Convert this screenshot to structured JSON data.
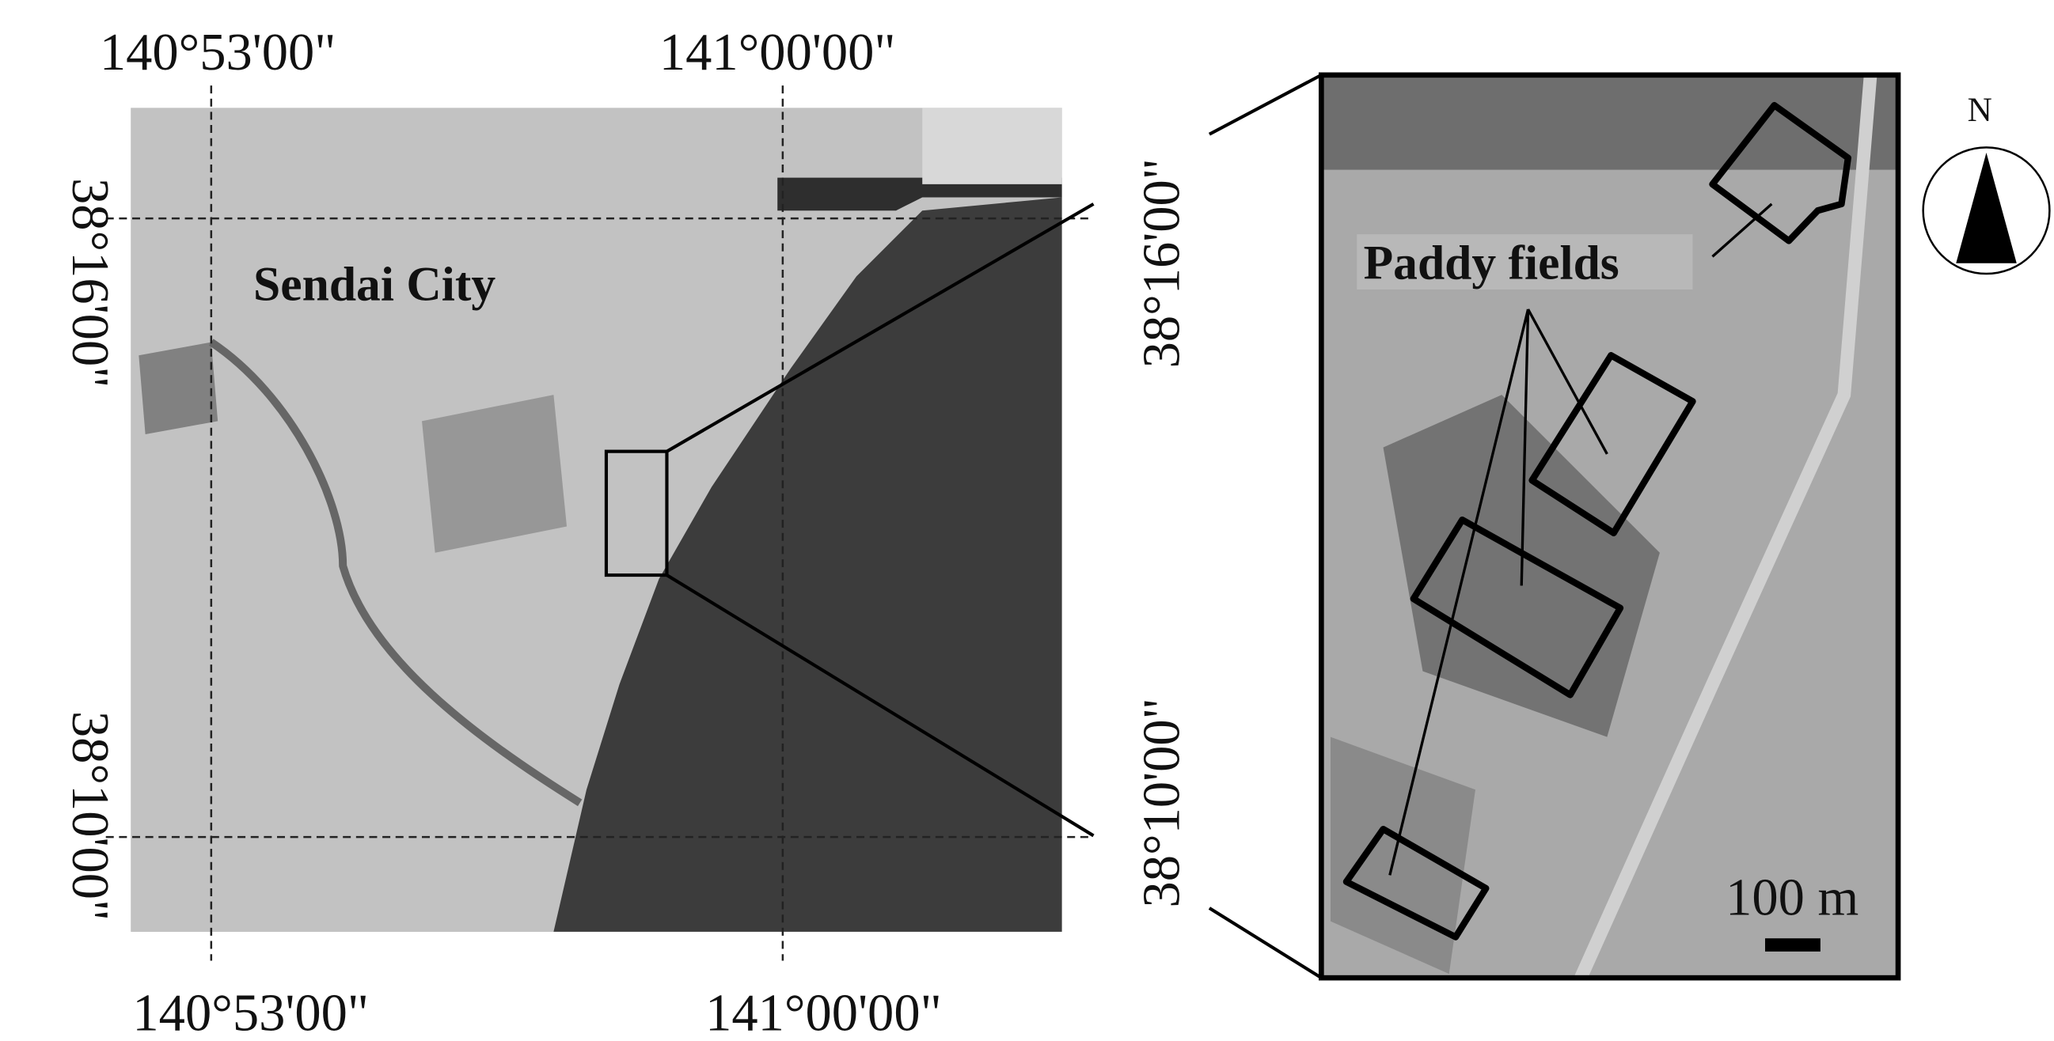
{
  "map": {
    "top_labels": [
      "140°53'00\"",
      "141°00'00\""
    ],
    "bottom_labels": [
      "140°53'00\"",
      "141°00'00\""
    ],
    "left_labels": [
      "38°16'00\"",
      "38°10'00\""
    ],
    "right_labels": [
      "38°16'00\"",
      "38°10'00\""
    ],
    "city_label": "Sendai City",
    "inset_label": "Paddy fields",
    "scale_label": "100 m",
    "north_label": "N"
  }
}
